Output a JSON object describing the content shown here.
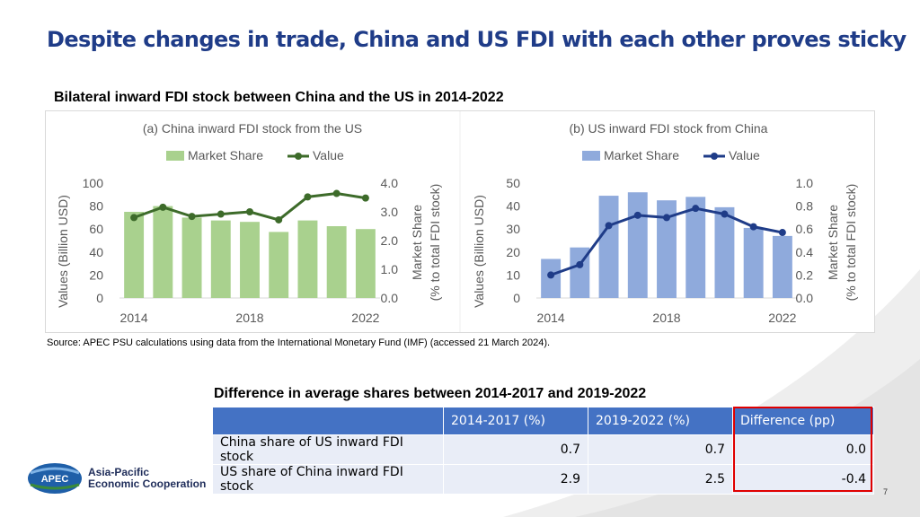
{
  "slide": {
    "title": "Despite changes in trade, China and US FDI with each other proves sticky",
    "section_title": "Bilateral inward FDI stock between China and the US in 2014-2022",
    "source": "Source: APEC PSU calculations using data from the International Monetary Fund (IMF) (accessed 21 March 2024).",
    "page_number": "7"
  },
  "chart_data": [
    {
      "type": "bar+line",
      "title": "(a) China inward FDI stock from the US",
      "legend": [
        "Market Share",
        "Value"
      ],
      "x": [
        2014,
        2015,
        2016,
        2017,
        2018,
        2019,
        2020,
        2021,
        2022
      ],
      "x_tick_labels": [
        "2014",
        "2018",
        "2022"
      ],
      "bars": {
        "name": "Market Share",
        "axis": "right",
        "values": [
          3.0,
          3.2,
          2.8,
          2.7,
          2.65,
          2.3,
          2.7,
          2.5,
          2.4
        ]
      },
      "line": {
        "name": "Value",
        "axis": "left",
        "values": [
          70,
          79,
          71,
          73,
          75,
          68,
          88,
          91,
          87
        ]
      },
      "left_axis": {
        "label": "Values (Billion USD)",
        "lim": [
          0,
          100
        ],
        "ticks": [
          "0",
          "20",
          "40",
          "60",
          "80",
          "100"
        ]
      },
      "right_axis": {
        "label_line1": "Market Share",
        "label_line2": "(% to total FDI stock)",
        "lim": [
          0,
          4
        ],
        "ticks": [
          "0.0",
          "1.0",
          "2.0",
          "3.0",
          "4.0"
        ]
      },
      "colors": {
        "bar": "#a9d18e",
        "line": "#3d6b2a"
      }
    },
    {
      "type": "bar+line",
      "title": "(b) US inward FDI stock from China",
      "legend": [
        "Market Share",
        "Value"
      ],
      "x": [
        2014,
        2015,
        2016,
        2017,
        2018,
        2019,
        2020,
        2021,
        2022
      ],
      "x_tick_labels": [
        "2014",
        "2018",
        "2022"
      ],
      "bars": {
        "name": "Market Share",
        "axis": "right",
        "values": [
          0.34,
          0.44,
          0.89,
          0.92,
          0.85,
          0.88,
          0.79,
          0.61,
          0.54
        ]
      },
      "line": {
        "name": "Value",
        "axis": "left",
        "values": [
          10,
          14.5,
          31.5,
          36,
          35,
          39,
          36.5,
          31,
          28.5
        ]
      },
      "left_axis": {
        "label": "Values (Billion USD)",
        "lim": [
          0,
          50
        ],
        "ticks": [
          "0",
          "10",
          "20",
          "30",
          "40",
          "50"
        ]
      },
      "right_axis": {
        "label_line1": "Market Share",
        "label_line2": "(% to total FDI stock)",
        "lim": [
          0,
          1
        ],
        "ticks": [
          "0.0",
          "0.2",
          "0.4",
          "0.6",
          "0.8",
          "1.0"
        ]
      },
      "colors": {
        "bar": "#8faadc",
        "line": "#1f3c88"
      }
    }
  ],
  "table": {
    "title": "Difference in average shares between 2014-2017 and 2019-2022",
    "headers": [
      "",
      "2014-2017 (%)",
      "2019-2022 (%)",
      "Difference (pp)"
    ],
    "rows": [
      [
        "China share of US inward FDI stock",
        "0.7",
        "0.7",
        "0.0"
      ],
      [
        "US share of China inward FDI stock",
        "2.9",
        "2.5",
        "-0.4"
      ]
    ],
    "highlight_color": "#e00000"
  },
  "logo": {
    "mark": "APEC",
    "line1": "Asia-Pacific",
    "line2": "Economic Cooperation"
  }
}
